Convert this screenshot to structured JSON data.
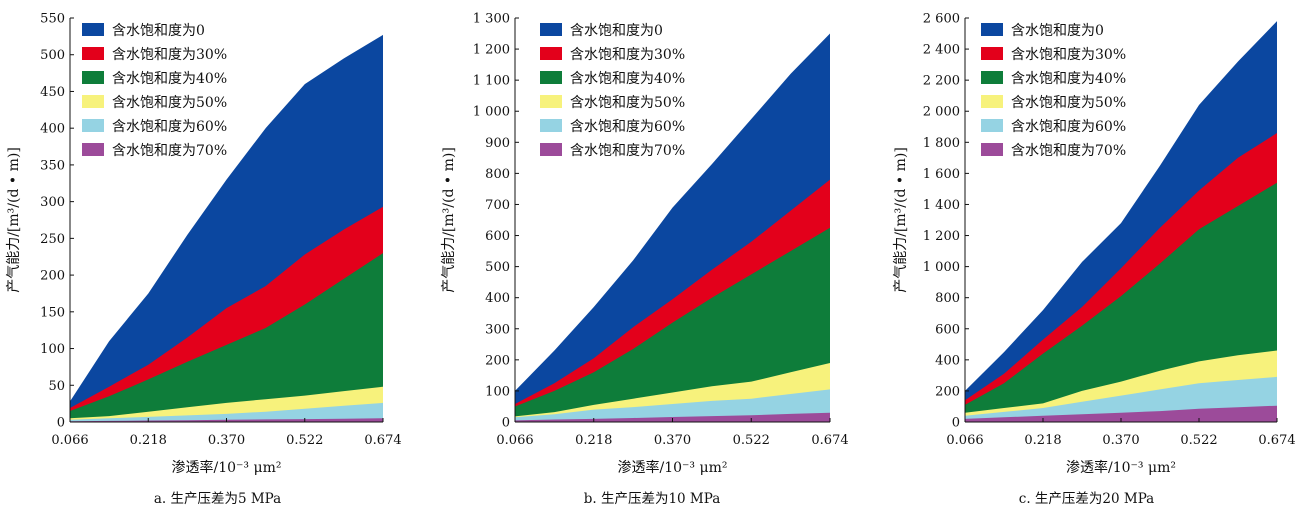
{
  "chart_data": [
    {
      "type": "area",
      "caption": "a. 生产压差为5 MPa",
      "xlabel": "渗透率/10⁻³ μm²",
      "ylabel": "产气能力/[m³/(d • m)]",
      "x_ticks": [
        "0.066",
        "0.218",
        "0.370",
        "0.522",
        "0.674"
      ],
      "y_ticks": [
        "0",
        "50",
        "100",
        "150",
        "200",
        "250",
        "300",
        "350",
        "400",
        "450",
        "500",
        "550"
      ],
      "ylim": [
        0,
        550
      ],
      "x": [
        0.066,
        0.142,
        0.218,
        0.294,
        0.37,
        0.446,
        0.522,
        0.598,
        0.674
      ],
      "legend_position": "top-left",
      "series": [
        {
          "name": "含水饱和度为0",
          "color": "#0b47a0",
          "values": [
            28,
            110,
            175,
            255,
            330,
            400,
            460,
            495,
            527
          ]
        },
        {
          "name": "含水饱和度为30%",
          "color": "#e3001b",
          "values": [
            19,
            48,
            78,
            115,
            155,
            185,
            228,
            262,
            293
          ]
        },
        {
          "name": "含水饱和度为40%",
          "color": "#0e7d3a",
          "values": [
            15,
            35,
            58,
            82,
            105,
            128,
            160,
            195,
            230
          ]
        },
        {
          "name": "含水饱和度为50%",
          "color": "#f7f27c",
          "values": [
            5,
            8,
            14,
            20,
            26,
            31,
            36,
            42,
            48
          ]
        },
        {
          "name": "含水饱和度为60%",
          "color": "#95d3e3",
          "values": [
            3,
            5,
            7,
            9,
            11,
            14,
            18,
            22,
            26
          ]
        },
        {
          "name": "含水饱和度为70%",
          "color": "#9c4b9a",
          "values": [
            1,
            1.5,
            2,
            2.5,
            3,
            3.5,
            4,
            4.5,
            5
          ]
        }
      ]
    },
    {
      "type": "area",
      "caption": "b. 生产压差为10 MPa",
      "xlabel": "渗透率/10⁻³ μm²",
      "ylabel": "产气能力/[m³/(d • m)]",
      "x_ticks": [
        "0.066",
        "0.218",
        "0.370",
        "0.522",
        "0.674"
      ],
      "y_ticks": [
        "0",
        "100",
        "200",
        "300",
        "400",
        "500",
        "600",
        "700",
        "800",
        "900",
        "1 000",
        "1 100",
        "1 200",
        "1 300"
      ],
      "ylim": [
        0,
        1300
      ],
      "x": [
        0.066,
        0.142,
        0.218,
        0.294,
        0.37,
        0.446,
        0.522,
        0.598,
        0.674
      ],
      "legend_position": "top-left",
      "series": [
        {
          "name": "含水饱和度为0",
          "color": "#0b47a0",
          "values": [
            100,
            230,
            370,
            520,
            690,
            830,
            975,
            1120,
            1250
          ]
        },
        {
          "name": "含水饱和度为30%",
          "color": "#e3001b",
          "values": [
            58,
            125,
            205,
            305,
            395,
            490,
            580,
            680,
            780
          ]
        },
        {
          "name": "含水饱和度为40%",
          "color": "#0e7d3a",
          "values": [
            50,
            100,
            160,
            235,
            320,
            400,
            475,
            550,
            625
          ]
        },
        {
          "name": "含水饱和度为50%",
          "color": "#f7f27c",
          "values": [
            18,
            32,
            55,
            75,
            95,
            115,
            130,
            160,
            190
          ]
        },
        {
          "name": "含水饱和度为60%",
          "color": "#95d3e3",
          "values": [
            15,
            25,
            40,
            48,
            58,
            68,
            75,
            90,
            105
          ]
        },
        {
          "name": "含水饱和度为70%",
          "color": "#9c4b9a",
          "values": [
            5,
            8,
            10,
            13,
            16,
            19,
            22,
            26,
            30
          ]
        }
      ]
    },
    {
      "type": "area",
      "caption": "c. 生产压差为20 MPa",
      "xlabel": "渗透率/10⁻³ μm²",
      "ylabel": "产气能力/[m³/(d • m)]",
      "x_ticks": [
        "0.066",
        "0.218",
        "0.370",
        "0.522",
        "0.674"
      ],
      "y_ticks": [
        "0",
        "200",
        "400",
        "600",
        "800",
        "1 000",
        "1 200",
        "1 400",
        "1 600",
        "1 800",
        "2 000",
        "2 200",
        "2 400",
        "2 600"
      ],
      "ylim": [
        0,
        2600
      ],
      "x": [
        0.066,
        0.142,
        0.218,
        0.294,
        0.37,
        0.446,
        0.522,
        0.598,
        0.674
      ],
      "legend_position": "top-left",
      "series": [
        {
          "name": "含水饱和度为0",
          "color": "#0b47a0",
          "values": [
            200,
            450,
            720,
            1030,
            1280,
            1650,
            2040,
            2320,
            2580
          ]
        },
        {
          "name": "含水饱和度为30%",
          "color": "#e3001b",
          "values": [
            140,
            310,
            530,
            740,
            990,
            1250,
            1490,
            1700,
            1860
          ]
        },
        {
          "name": "含水饱和度为40%",
          "color": "#0e7d3a",
          "values": [
            110,
            250,
            440,
            620,
            810,
            1020,
            1240,
            1390,
            1540
          ]
        },
        {
          "name": "含水饱和度为50%",
          "color": "#f7f27c",
          "values": [
            60,
            90,
            120,
            200,
            260,
            330,
            390,
            430,
            460
          ]
        },
        {
          "name": "含水饱和度为60%",
          "color": "#95d3e3",
          "values": [
            40,
            65,
            90,
            130,
            170,
            210,
            250,
            270,
            290
          ]
        },
        {
          "name": "含水饱和度为70%",
          "color": "#9c4b9a",
          "values": [
            20,
            30,
            40,
            50,
            60,
            70,
            85,
            95,
            105
          ]
        }
      ]
    }
  ]
}
